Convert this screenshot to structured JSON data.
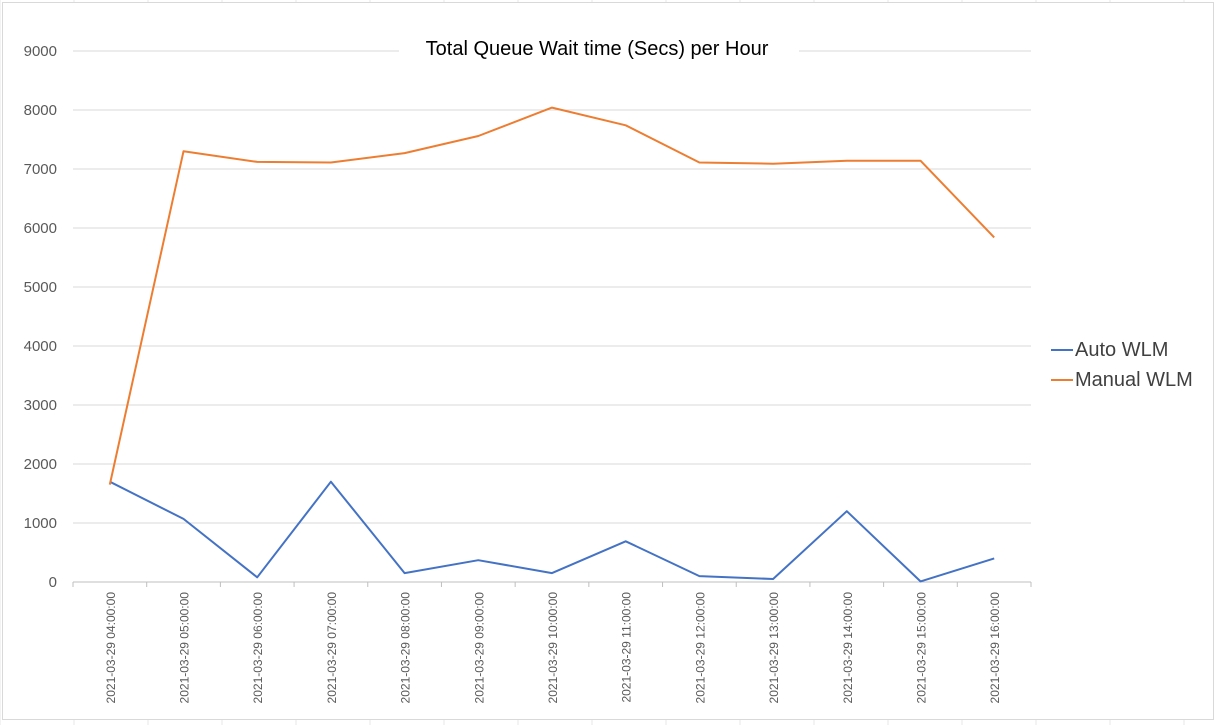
{
  "chart_data": {
    "type": "line",
    "title": "Total Queue Wait time (Secs) per Hour",
    "xlabel": "",
    "ylabel": "",
    "ylim": [
      0,
      9000
    ],
    "y_ticks": [
      "0",
      "1000",
      "2000",
      "3000",
      "4000",
      "5000",
      "6000",
      "7000",
      "8000",
      "9000"
    ],
    "grid": "horizontal",
    "legend_position": "right",
    "categories": [
      "2021-03-29 04:00:00",
      "2021-03-29 05:00:00",
      "2021-03-29 06:00:00",
      "2021-03-29 07:00:00",
      "2021-03-29 08:00:00",
      "2021-03-29 09:00:00",
      "2021-03-29 10:00:00",
      "2021-03-29 11:00:00",
      "2021-03-29 12:00:00",
      "2021-03-29 13:00:00",
      "2021-03-29 14:00:00",
      "2021-03-29 15:00:00",
      "2021-03-29 16:00:00"
    ],
    "series": [
      {
        "name": "Auto WLM",
        "color": "#4472c4",
        "values": [
          1700,
          1070,
          80,
          1700,
          150,
          370,
          150,
          690,
          100,
          50,
          1200,
          10,
          400
        ]
      },
      {
        "name": "Manual WLM",
        "color": "#ed7d31",
        "values": [
          1650,
          7300,
          7120,
          7110,
          7270,
          7560,
          8040,
          7740,
          7110,
          7090,
          7140,
          7140,
          5840
        ]
      }
    ]
  }
}
